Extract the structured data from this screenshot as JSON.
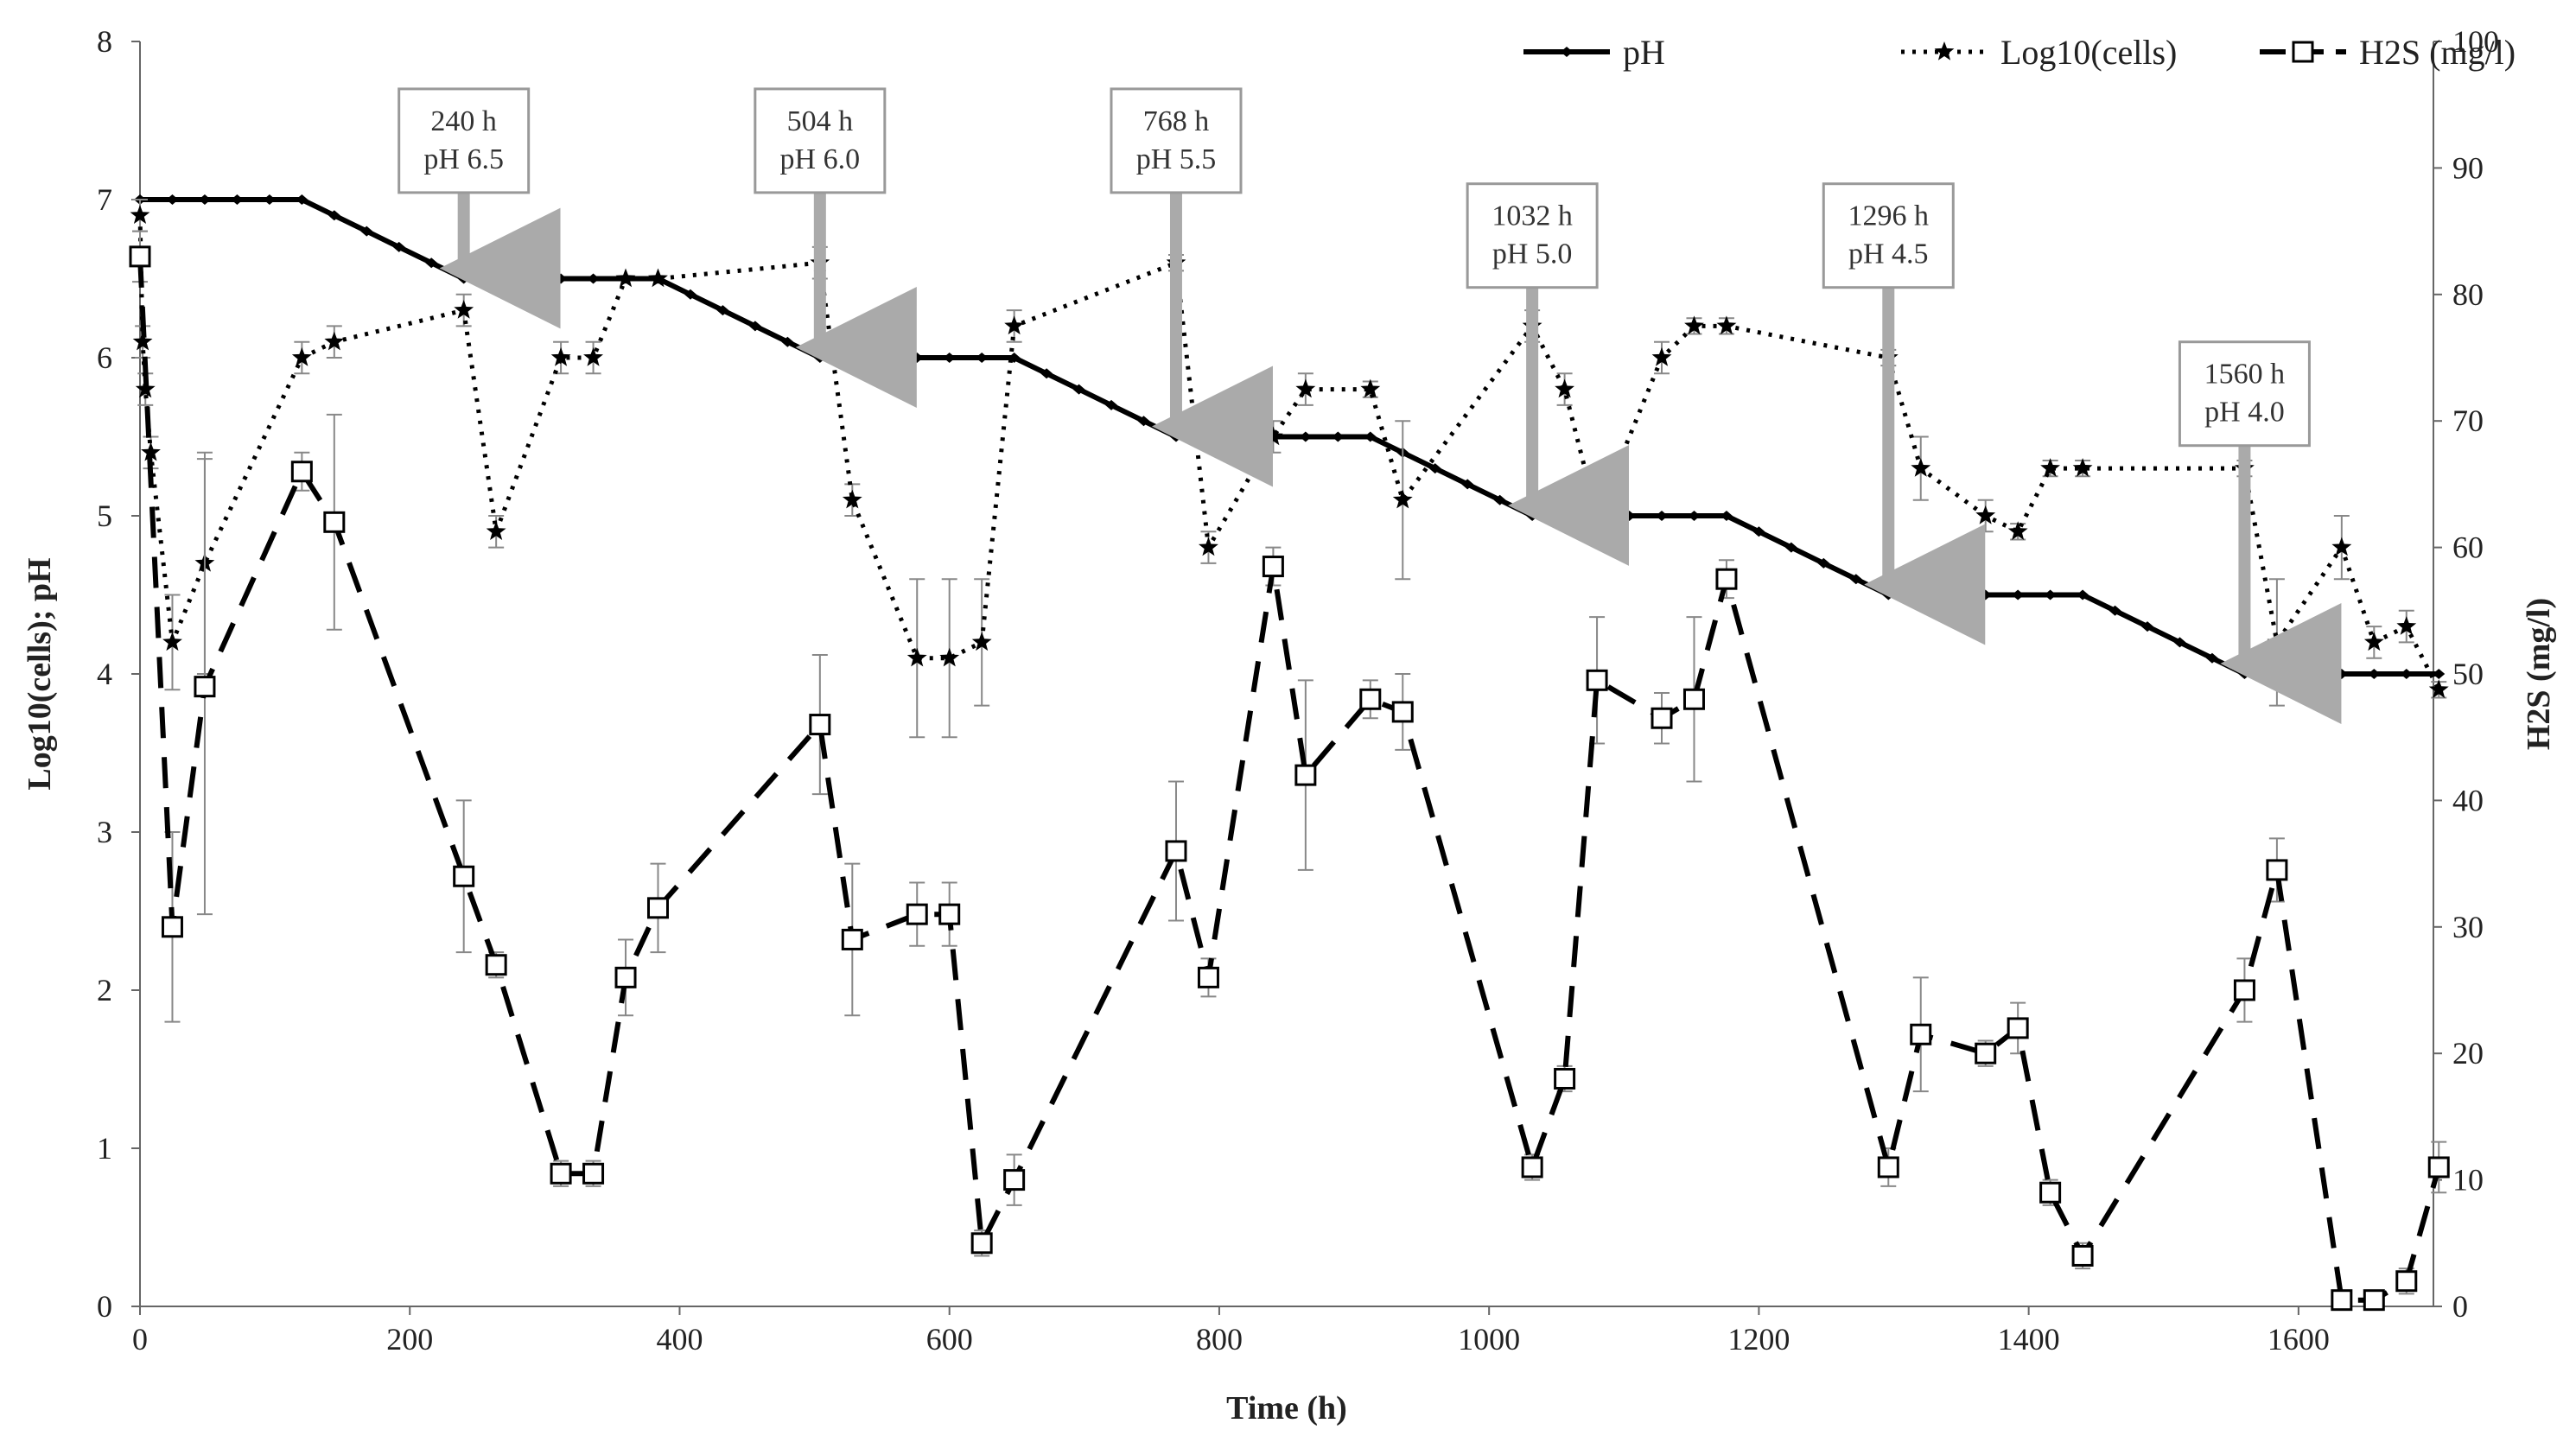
{
  "chart_data": {
    "type": "line",
    "xlabel": "Time (h)",
    "ylabel_left": "Log10(cells); pH",
    "ylabel_right": "H2S (mg/l)",
    "xlim": [
      0,
      1700
    ],
    "ylim_left": [
      0,
      8
    ],
    "ylim_right": [
      0,
      100
    ],
    "x_ticks": [
      0,
      200,
      400,
      600,
      800,
      1000,
      1200,
      1400,
      1600
    ],
    "y_left_ticks": [
      0,
      1,
      2,
      3,
      4,
      5,
      6,
      7,
      8
    ],
    "y_right_ticks": [
      0,
      10,
      20,
      30,
      40,
      50,
      60,
      70,
      80,
      90,
      100
    ],
    "legend": {
      "placement": "top-right",
      "entries": [
        "pH",
        "Log10(cells)",
        "H2S (mg/l)"
      ]
    },
    "series": [
      {
        "name": "pH",
        "axis": "left",
        "style": "solid",
        "x": [
          0,
          24,
          48,
          72,
          96,
          120,
          144,
          168,
          192,
          216,
          240,
          264,
          288,
          312,
          336,
          360,
          384,
          408,
          432,
          456,
          480,
          504,
          528,
          552,
          576,
          600,
          624,
          648,
          672,
          696,
          720,
          744,
          768,
          792,
          816,
          840,
          864,
          888,
          912,
          936,
          960,
          984,
          1008,
          1032,
          1056,
          1080,
          1104,
          1128,
          1152,
          1176,
          1200,
          1224,
          1248,
          1272,
          1296,
          1320,
          1344,
          1368,
          1392,
          1416,
          1440,
          1464,
          1488,
          1512,
          1536,
          1560,
          1584,
          1608,
          1632,
          1656,
          1680,
          1704
        ],
        "values": [
          7.0,
          7.0,
          7.0,
          7.0,
          7.0,
          7.0,
          6.9,
          6.8,
          6.7,
          6.6,
          6.5,
          6.5,
          6.5,
          6.5,
          6.5,
          6.5,
          6.5,
          6.4,
          6.3,
          6.2,
          6.1,
          6.0,
          6.0,
          6.0,
          6.0,
          6.0,
          6.0,
          6.0,
          5.9,
          5.8,
          5.7,
          5.6,
          5.5,
          5.5,
          5.5,
          5.5,
          5.5,
          5.5,
          5.5,
          5.4,
          5.3,
          5.2,
          5.1,
          5.0,
          5.0,
          5.0,
          5.0,
          5.0,
          5.0,
          5.0,
          4.9,
          4.8,
          4.7,
          4.6,
          4.5,
          4.5,
          4.5,
          4.5,
          4.5,
          4.5,
          4.5,
          4.4,
          4.3,
          4.2,
          4.1,
          4.0,
          4.0,
          4.0,
          4.0,
          4.0,
          4.0,
          4.0
        ]
      },
      {
        "name": "Log10(cells)",
        "axis": "left",
        "style": "dotted",
        "x": [
          0,
          2,
          4,
          8,
          24,
          48,
          120,
          144,
          240,
          264,
          312,
          336,
          360,
          384,
          504,
          528,
          576,
          600,
          624,
          648,
          768,
          792,
          840,
          864,
          912,
          936,
          1032,
          1056,
          1080,
          1128,
          1152,
          1176,
          1296,
          1320,
          1368,
          1392,
          1416,
          1440,
          1560,
          1584,
          1632,
          1656,
          1680,
          1704
        ],
        "values": [
          6.9,
          6.1,
          5.8,
          5.4,
          4.2,
          4.7,
          6.0,
          6.1,
          6.3,
          4.9,
          6.0,
          6.0,
          6.5,
          6.5,
          6.6,
          5.1,
          4.1,
          4.1,
          4.2,
          6.2,
          6.6,
          4.8,
          5.5,
          5.8,
          5.8,
          5.1,
          6.2,
          5.8,
          5.0,
          6.0,
          6.2,
          6.2,
          6.0,
          5.3,
          5.0,
          4.9,
          5.3,
          5.3,
          5.3,
          4.2,
          4.8,
          4.2,
          4.3,
          3.9
        ],
        "errors": [
          0.1,
          0.1,
          0.1,
          0.1,
          0.3,
          0.7,
          0.1,
          0.1,
          0.1,
          0.1,
          0.1,
          0.1,
          0.0,
          0.0,
          0.1,
          0.1,
          0.5,
          0.5,
          0.4,
          0.1,
          0.05,
          0.1,
          0.1,
          0.1,
          0.05,
          0.5,
          0.1,
          0.1,
          0.0,
          0.1,
          0.05,
          0.05,
          0.05,
          0.2,
          0.1,
          0.05,
          0.05,
          0.05,
          0.05,
          0.4,
          0.2,
          0.1,
          0.1,
          0.05
        ]
      },
      {
        "name": "H2S (mg/l)",
        "axis": "right",
        "style": "dashed",
        "x": [
          0,
          24,
          48,
          120,
          144,
          240,
          264,
          312,
          336,
          360,
          384,
          504,
          528,
          576,
          600,
          624,
          648,
          768,
          792,
          840,
          864,
          912,
          936,
          1032,
          1056,
          1080,
          1128,
          1152,
          1176,
          1296,
          1320,
          1368,
          1392,
          1416,
          1440,
          1560,
          1584,
          1632,
          1656,
          1680,
          1704
        ],
        "values": [
          83,
          30,
          49,
          66,
          62,
          34,
          27,
          10.5,
          10.5,
          26,
          31.5,
          46,
          29,
          31,
          31,
          5,
          10,
          36,
          26,
          58.5,
          42,
          48,
          47,
          11,
          18,
          49.5,
          46.5,
          48,
          57.5,
          11,
          21.5,
          20,
          22,
          9,
          4,
          25,
          34.5,
          0.5,
          0.5,
          2,
          11
        ],
        "errors": [
          2,
          7.5,
          18,
          1.5,
          8.5,
          6,
          1,
          1,
          1,
          3,
          3.5,
          5.5,
          6,
          2.5,
          2.5,
          1,
          2,
          5.5,
          1.5,
          1.5,
          7.5,
          1.5,
          3,
          1,
          1,
          5,
          2,
          6.5,
          1.5,
          1.5,
          4.5,
          1,
          2,
          1,
          1,
          2.5,
          2.5,
          0.5,
          0.5,
          1,
          2
        ]
      }
    ],
    "annotations": [
      {
        "x": 240,
        "time": "240 h",
        "ph": "pH 6.5",
        "box_top": 7.7,
        "arrow_end": 6.5
      },
      {
        "x": 504,
        "time": "504 h",
        "ph": "pH 6.0",
        "box_top": 7.7,
        "arrow_end": 6.0
      },
      {
        "x": 768,
        "time": "768 h",
        "ph": "pH 5.5",
        "box_top": 7.7,
        "arrow_end": 5.5
      },
      {
        "x": 1032,
        "time": "1032 h",
        "ph": "pH 5.0",
        "box_top": 7.1,
        "arrow_end": 5.0
      },
      {
        "x": 1296,
        "time": "1296 h",
        "ph": "pH 4.5",
        "box_top": 7.1,
        "arrow_end": 4.5
      },
      {
        "x": 1560,
        "time": "1560 h",
        "ph": "pH 4.0",
        "box_top": 6.1,
        "arrow_end": 4.0
      }
    ]
  }
}
